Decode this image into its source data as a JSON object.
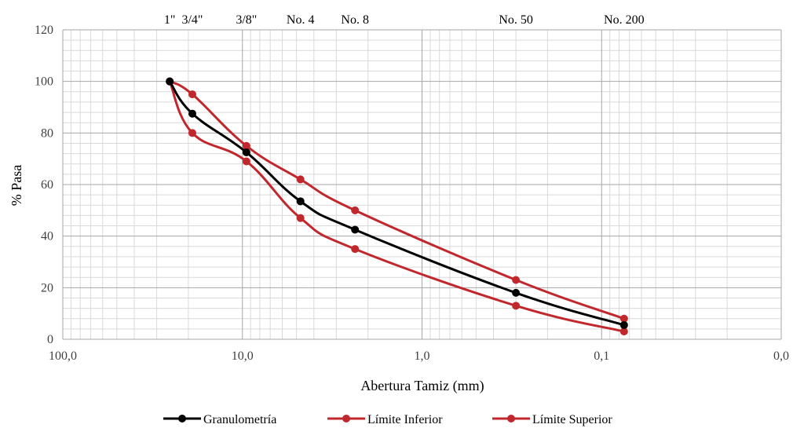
{
  "chart_data": {
    "type": "line",
    "title": "",
    "xlabel": "Abertura Tamiz (mm)",
    "ylabel": "% Pasa",
    "x_scale": "log",
    "x_reversed": true,
    "xlim": [
      100,
      0.01
    ],
    "ylim": [
      0,
      120
    ],
    "x_tick_labels": [
      "100,0",
      "10,0",
      "1,0",
      "0,1",
      "0,0"
    ],
    "x_tick_values": [
      100,
      10,
      1,
      0.1,
      0.01
    ],
    "y_ticks": [
      0,
      20,
      40,
      60,
      80,
      100,
      120
    ],
    "grid": true,
    "legend_position": "bottom",
    "sieves": [
      {
        "label": "1\"",
        "x": 25.4
      },
      {
        "label": "3/4\"",
        "x": 19.0
      },
      {
        "label": "3/8\"",
        "x": 9.5
      },
      {
        "label": "No. 4",
        "x": 4.75
      },
      {
        "label": "No. 8",
        "x": 2.36
      },
      {
        "label": "No. 50",
        "x": 0.3
      },
      {
        "label": "No. 200",
        "x": 0.075
      }
    ],
    "series": [
      {
        "name": "Granulometría",
        "color": "#000000",
        "x": [
          25.4,
          19.0,
          9.5,
          4.75,
          2.36,
          0.3,
          0.075
        ],
        "y": [
          100,
          87.5,
          72.5,
          53.5,
          42.5,
          18,
          5.5
        ]
      },
      {
        "name": "Límite Inferior",
        "color": "#c0282d",
        "x": [
          25.4,
          19.0,
          9.5,
          4.75,
          2.36,
          0.3,
          0.075
        ],
        "y": [
          100,
          80,
          69,
          47,
          35,
          13,
          3
        ]
      },
      {
        "name": "Límite Superior",
        "color": "#c0282d",
        "x": [
          25.4,
          19.0,
          9.5,
          4.75,
          2.36,
          0.3,
          0.075
        ],
        "y": [
          100,
          95,
          75,
          62,
          50,
          23,
          8
        ]
      }
    ]
  }
}
